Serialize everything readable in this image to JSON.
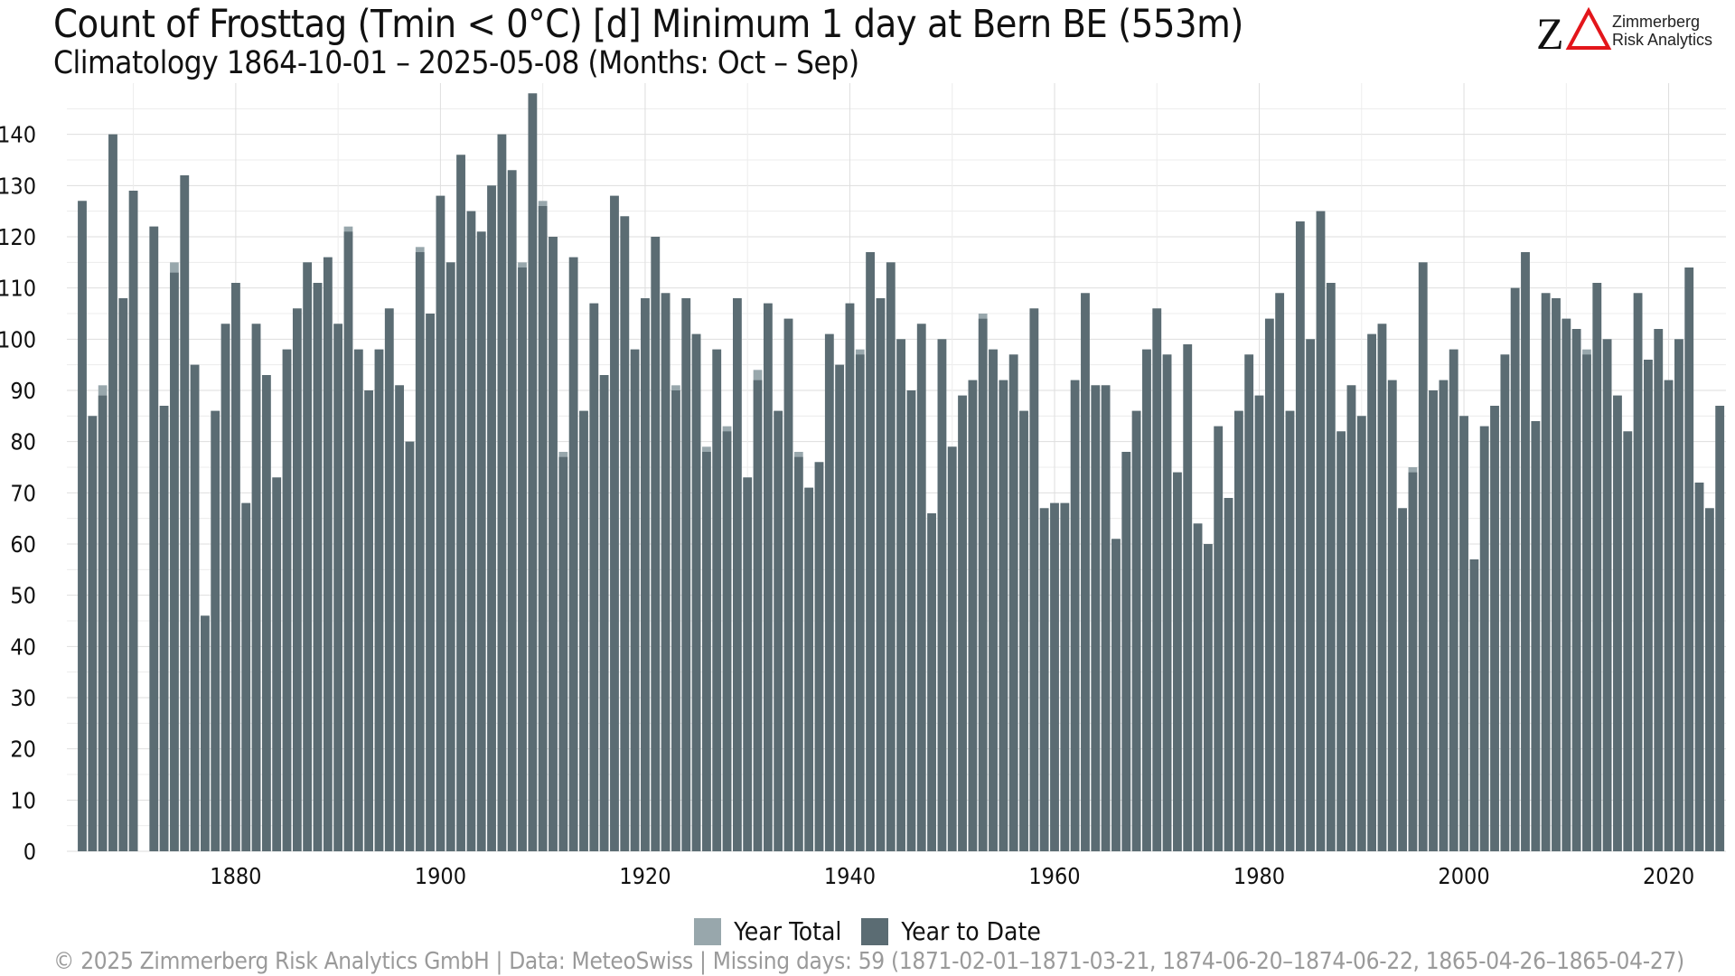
{
  "colors": {
    "year_total": "#98a7ac",
    "year_to_date": "#5b6c73",
    "grid": "#dedede",
    "axis_text": "#111111",
    "footer_text": "#9a9a9a",
    "logo_red": "#e3161b"
  },
  "logo": {
    "glyph": "Z",
    "line1": "Zimmerberg",
    "line2": "Risk Analytics"
  },
  "legend": {
    "items": [
      {
        "label": "Year Total",
        "color": "#98a7ac"
      },
      {
        "label": "Year to Date",
        "color": "#5b6c73"
      }
    ]
  },
  "footer": "©  2025 Zimmerberg Risk Analytics GmbH | Data: MeteoSwiss | Missing days: 59 (1871-02-01–1871-03-21, 1874-06-20–1874-06-22, 1865-04-26–1865-04-27)",
  "chart_data": {
    "type": "bar",
    "title": "Count of Frosttag (Tmin < 0°C) [d] Minimum 1 day at Bern  BE (553m)",
    "subtitle": "Climatology 1864-10-01 – 2025-05-08 (Months: Oct – Sep)",
    "xlabel": "",
    "ylabel": "",
    "xlim": [
      1863.5,
      2025.6
    ],
    "ylim": [
      0,
      150
    ],
    "x_ticks": [
      1880,
      1900,
      1920,
      1940,
      1960,
      1980,
      2000,
      2020
    ],
    "y_ticks": [
      0,
      10,
      20,
      30,
      40,
      50,
      60,
      70,
      80,
      90,
      100,
      110,
      120,
      130,
      140
    ],
    "grid": true,
    "legend_position": "bottom",
    "series_names": [
      "Year Total",
      "Year to Date"
    ],
    "bars": [
      {
        "x": 1865,
        "total": 127,
        "ytd": 127
      },
      {
        "x": 1866,
        "total": 85,
        "ytd": 85
      },
      {
        "x": 1867,
        "total": 91,
        "ytd": 89
      },
      {
        "x": 1868,
        "total": 140,
        "ytd": 140
      },
      {
        "x": 1869,
        "total": 108,
        "ytd": 108
      },
      {
        "x": 1870,
        "total": 129,
        "ytd": 129
      },
      {
        "x": 1872,
        "total": 122,
        "ytd": 122
      },
      {
        "x": 1873,
        "total": 87,
        "ytd": 87
      },
      {
        "x": 1874,
        "total": 115,
        "ytd": 113
      },
      {
        "x": 1875,
        "total": 132,
        "ytd": 132
      },
      {
        "x": 1876,
        "total": 95,
        "ytd": 95
      },
      {
        "x": 1877,
        "total": 46,
        "ytd": 46
      },
      {
        "x": 1878,
        "total": 86,
        "ytd": 86
      },
      {
        "x": 1879,
        "total": 103,
        "ytd": 103
      },
      {
        "x": 1880,
        "total": 111,
        "ytd": 111
      },
      {
        "x": 1881,
        "total": 68,
        "ytd": 68
      },
      {
        "x": 1882,
        "total": 103,
        "ytd": 103
      },
      {
        "x": 1883,
        "total": 93,
        "ytd": 93
      },
      {
        "x": 1884,
        "total": 73,
        "ytd": 73
      },
      {
        "x": 1885,
        "total": 98,
        "ytd": 98
      },
      {
        "x": 1886,
        "total": 106,
        "ytd": 106
      },
      {
        "x": 1887,
        "total": 115,
        "ytd": 115
      },
      {
        "x": 1888,
        "total": 111,
        "ytd": 111
      },
      {
        "x": 1889,
        "total": 116,
        "ytd": 116
      },
      {
        "x": 1890,
        "total": 103,
        "ytd": 103
      },
      {
        "x": 1891,
        "total": 122,
        "ytd": 121
      },
      {
        "x": 1892,
        "total": 98,
        "ytd": 98
      },
      {
        "x": 1893,
        "total": 90,
        "ytd": 90
      },
      {
        "x": 1894,
        "total": 98,
        "ytd": 98
      },
      {
        "x": 1895,
        "total": 106,
        "ytd": 106
      },
      {
        "x": 1896,
        "total": 91,
        "ytd": 91
      },
      {
        "x": 1897,
        "total": 80,
        "ytd": 80
      },
      {
        "x": 1898,
        "total": 118,
        "ytd": 117
      },
      {
        "x": 1899,
        "total": 105,
        "ytd": 105
      },
      {
        "x": 1900,
        "total": 128,
        "ytd": 128
      },
      {
        "x": 1901,
        "total": 115,
        "ytd": 115
      },
      {
        "x": 1902,
        "total": 136,
        "ytd": 136
      },
      {
        "x": 1903,
        "total": 125,
        "ytd": 125
      },
      {
        "x": 1904,
        "total": 121,
        "ytd": 121
      },
      {
        "x": 1905,
        "total": 130,
        "ytd": 130
      },
      {
        "x": 1906,
        "total": 140,
        "ytd": 140
      },
      {
        "x": 1907,
        "total": 133,
        "ytd": 133
      },
      {
        "x": 1908,
        "total": 115,
        "ytd": 114
      },
      {
        "x": 1909,
        "total": 148,
        "ytd": 148
      },
      {
        "x": 1910,
        "total": 127,
        "ytd": 126
      },
      {
        "x": 1911,
        "total": 120,
        "ytd": 120
      },
      {
        "x": 1912,
        "total": 78,
        "ytd": 77
      },
      {
        "x": 1913,
        "total": 116,
        "ytd": 116
      },
      {
        "x": 1914,
        "total": 86,
        "ytd": 86
      },
      {
        "x": 1915,
        "total": 107,
        "ytd": 107
      },
      {
        "x": 1916,
        "total": 93,
        "ytd": 93
      },
      {
        "x": 1917,
        "total": 128,
        "ytd": 128
      },
      {
        "x": 1918,
        "total": 124,
        "ytd": 124
      },
      {
        "x": 1919,
        "total": 98,
        "ytd": 98
      },
      {
        "x": 1920,
        "total": 108,
        "ytd": 108
      },
      {
        "x": 1921,
        "total": 120,
        "ytd": 120
      },
      {
        "x": 1922,
        "total": 109,
        "ytd": 109
      },
      {
        "x": 1923,
        "total": 91,
        "ytd": 90
      },
      {
        "x": 1924,
        "total": 108,
        "ytd": 108
      },
      {
        "x": 1925,
        "total": 101,
        "ytd": 101
      },
      {
        "x": 1926,
        "total": 79,
        "ytd": 78
      },
      {
        "x": 1927,
        "total": 98,
        "ytd": 98
      },
      {
        "x": 1928,
        "total": 83,
        "ytd": 82
      },
      {
        "x": 1929,
        "total": 108,
        "ytd": 108
      },
      {
        "x": 1930,
        "total": 73,
        "ytd": 73
      },
      {
        "x": 1931,
        "total": 94,
        "ytd": 92
      },
      {
        "x": 1932,
        "total": 107,
        "ytd": 107
      },
      {
        "x": 1933,
        "total": 86,
        "ytd": 86
      },
      {
        "x": 1934,
        "total": 104,
        "ytd": 104
      },
      {
        "x": 1935,
        "total": 78,
        "ytd": 77
      },
      {
        "x": 1936,
        "total": 71,
        "ytd": 71
      },
      {
        "x": 1937,
        "total": 76,
        "ytd": 76
      },
      {
        "x": 1938,
        "total": 101,
        "ytd": 101
      },
      {
        "x": 1939,
        "total": 95,
        "ytd": 95
      },
      {
        "x": 1940,
        "total": 107,
        "ytd": 107
      },
      {
        "x": 1941,
        "total": 98,
        "ytd": 97
      },
      {
        "x": 1942,
        "total": 117,
        "ytd": 117
      },
      {
        "x": 1943,
        "total": 108,
        "ytd": 108
      },
      {
        "x": 1944,
        "total": 115,
        "ytd": 115
      },
      {
        "x": 1945,
        "total": 100,
        "ytd": 100
      },
      {
        "x": 1946,
        "total": 90,
        "ytd": 90
      },
      {
        "x": 1947,
        "total": 103,
        "ytd": 103
      },
      {
        "x": 1948,
        "total": 66,
        "ytd": 66
      },
      {
        "x": 1949,
        "total": 100,
        "ytd": 100
      },
      {
        "x": 1950,
        "total": 79,
        "ytd": 79
      },
      {
        "x": 1951,
        "total": 89,
        "ytd": 89
      },
      {
        "x": 1952,
        "total": 92,
        "ytd": 92
      },
      {
        "x": 1953,
        "total": 105,
        "ytd": 104
      },
      {
        "x": 1954,
        "total": 98,
        "ytd": 98
      },
      {
        "x": 1955,
        "total": 92,
        "ytd": 92
      },
      {
        "x": 1956,
        "total": 97,
        "ytd": 97
      },
      {
        "x": 1957,
        "total": 86,
        "ytd": 86
      },
      {
        "x": 1958,
        "total": 106,
        "ytd": 106
      },
      {
        "x": 1959,
        "total": 67,
        "ytd": 67
      },
      {
        "x": 1960,
        "total": 68,
        "ytd": 68
      },
      {
        "x": 1961,
        "total": 68,
        "ytd": 68
      },
      {
        "x": 1962,
        "total": 92,
        "ytd": 92
      },
      {
        "x": 1963,
        "total": 109,
        "ytd": 109
      },
      {
        "x": 1964,
        "total": 91,
        "ytd": 91
      },
      {
        "x": 1965,
        "total": 91,
        "ytd": 91
      },
      {
        "x": 1966,
        "total": 61,
        "ytd": 61
      },
      {
        "x": 1967,
        "total": 78,
        "ytd": 78
      },
      {
        "x": 1968,
        "total": 86,
        "ytd": 86
      },
      {
        "x": 1969,
        "total": 98,
        "ytd": 98
      },
      {
        "x": 1970,
        "total": 106,
        "ytd": 106
      },
      {
        "x": 1971,
        "total": 97,
        "ytd": 97
      },
      {
        "x": 1972,
        "total": 74,
        "ytd": 74
      },
      {
        "x": 1973,
        "total": 99,
        "ytd": 99
      },
      {
        "x": 1974,
        "total": 64,
        "ytd": 64
      },
      {
        "x": 1975,
        "total": 60,
        "ytd": 60
      },
      {
        "x": 1976,
        "total": 83,
        "ytd": 83
      },
      {
        "x": 1977,
        "total": 69,
        "ytd": 69
      },
      {
        "x": 1978,
        "total": 86,
        "ytd": 86
      },
      {
        "x": 1979,
        "total": 97,
        "ytd": 97
      },
      {
        "x": 1980,
        "total": 89,
        "ytd": 89
      },
      {
        "x": 1981,
        "total": 104,
        "ytd": 104
      },
      {
        "x": 1982,
        "total": 109,
        "ytd": 109
      },
      {
        "x": 1983,
        "total": 86,
        "ytd": 86
      },
      {
        "x": 1984,
        "total": 123,
        "ytd": 123
      },
      {
        "x": 1985,
        "total": 100,
        "ytd": 100
      },
      {
        "x": 1986,
        "total": 125,
        "ytd": 125
      },
      {
        "x": 1987,
        "total": 111,
        "ytd": 111
      },
      {
        "x": 1988,
        "total": 82,
        "ytd": 82
      },
      {
        "x": 1989,
        "total": 91,
        "ytd": 91
      },
      {
        "x": 1990,
        "total": 85,
        "ytd": 85
      },
      {
        "x": 1991,
        "total": 101,
        "ytd": 101
      },
      {
        "x": 1992,
        "total": 103,
        "ytd": 103
      },
      {
        "x": 1993,
        "total": 92,
        "ytd": 92
      },
      {
        "x": 1994,
        "total": 67,
        "ytd": 67
      },
      {
        "x": 1995,
        "total": 75,
        "ytd": 74
      },
      {
        "x": 1996,
        "total": 115,
        "ytd": 115
      },
      {
        "x": 1997,
        "total": 90,
        "ytd": 90
      },
      {
        "x": 1998,
        "total": 92,
        "ytd": 92
      },
      {
        "x": 1999,
        "total": 98,
        "ytd": 98
      },
      {
        "x": 2000,
        "total": 85,
        "ytd": 85
      },
      {
        "x": 2001,
        "total": 57,
        "ytd": 57
      },
      {
        "x": 2002,
        "total": 83,
        "ytd": 83
      },
      {
        "x": 2003,
        "total": 87,
        "ytd": 87
      },
      {
        "x": 2004,
        "total": 97,
        "ytd": 97
      },
      {
        "x": 2005,
        "total": 110,
        "ytd": 110
      },
      {
        "x": 2006,
        "total": 117,
        "ytd": 117
      },
      {
        "x": 2007,
        "total": 84,
        "ytd": 84
      },
      {
        "x": 2008,
        "total": 109,
        "ytd": 109
      },
      {
        "x": 2009,
        "total": 108,
        "ytd": 108
      },
      {
        "x": 2010,
        "total": 104,
        "ytd": 104
      },
      {
        "x": 2011,
        "total": 102,
        "ytd": 102
      },
      {
        "x": 2012,
        "total": 98,
        "ytd": 97
      },
      {
        "x": 2013,
        "total": 111,
        "ytd": 111
      },
      {
        "x": 2014,
        "total": 100,
        "ytd": 100
      },
      {
        "x": 2015,
        "total": 89,
        "ytd": 89
      },
      {
        "x": 2016,
        "total": 82,
        "ytd": 82
      },
      {
        "x": 2017,
        "total": 109,
        "ytd": 109
      },
      {
        "x": 2018,
        "total": 96,
        "ytd": 96
      },
      {
        "x": 2019,
        "total": 102,
        "ytd": 102
      },
      {
        "x": 2020,
        "total": 92,
        "ytd": 92
      },
      {
        "x": 2021,
        "total": 100,
        "ytd": 100
      },
      {
        "x": 2022,
        "total": 114,
        "ytd": 114
      },
      {
        "x": 2023,
        "total": 72,
        "ytd": 72
      },
      {
        "x": 2024,
        "total": 67,
        "ytd": 67
      },
      {
        "x": 2025,
        "total": 87,
        "ytd": 87
      }
    ]
  }
}
